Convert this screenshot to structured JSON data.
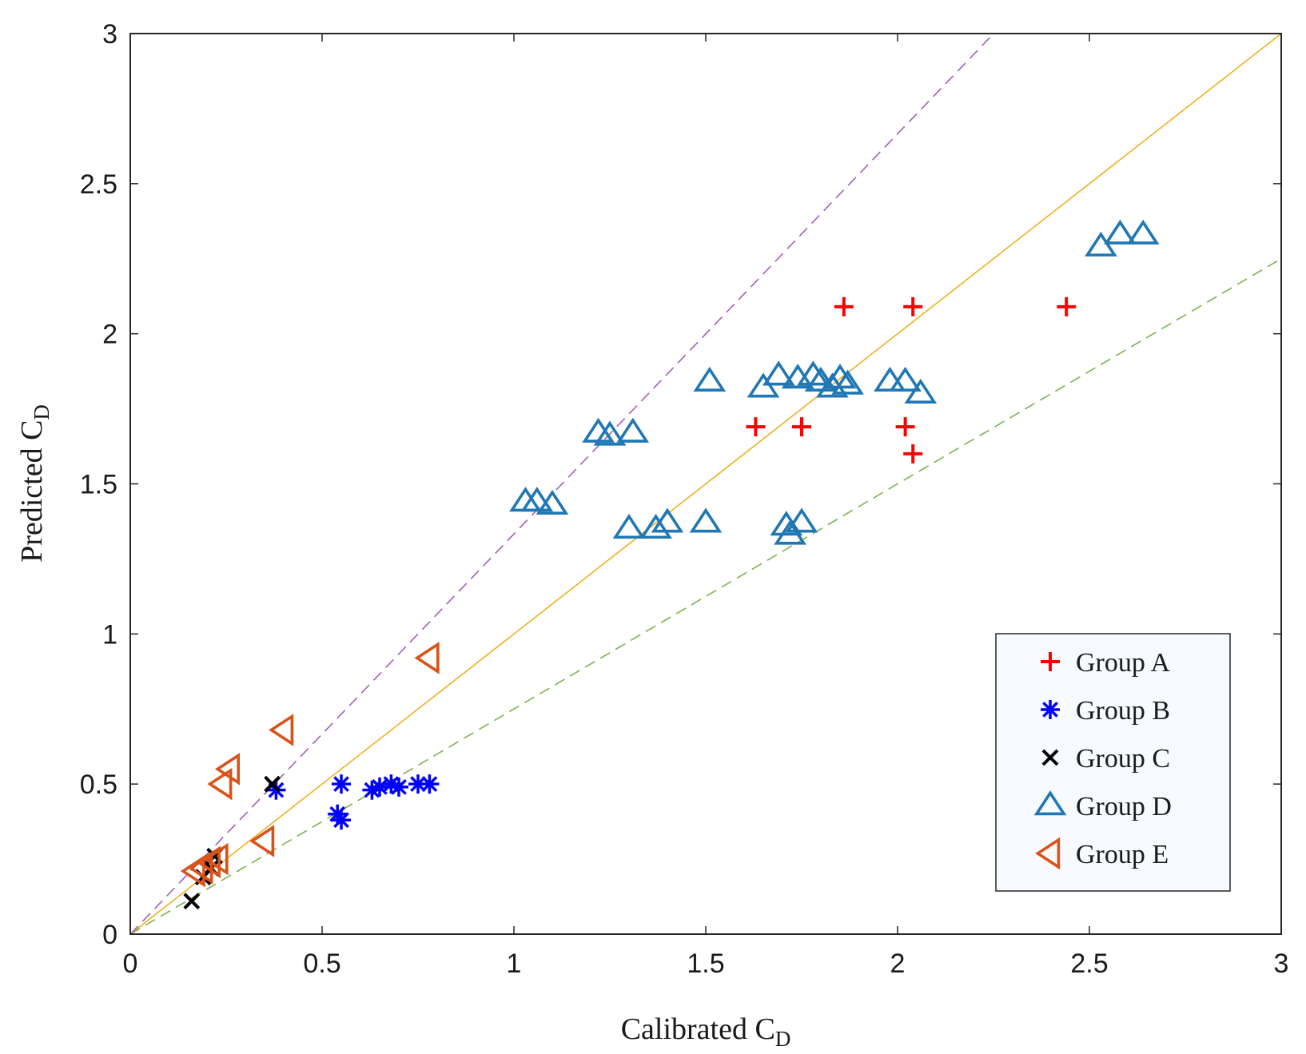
{
  "chart_data": {
    "type": "scatter",
    "title": "",
    "xlabel": {
      "main": "Calibrated C",
      "sub": "D"
    },
    "ylabel": {
      "main": "Predicted C",
      "sub": "D"
    },
    "xlim": [
      0,
      3
    ],
    "ylim": [
      0,
      3
    ],
    "xticks": [
      0,
      0.5,
      1,
      1.5,
      2,
      2.5,
      3
    ],
    "yticks": [
      0,
      0.5,
      1,
      1.5,
      2,
      2.5,
      3
    ],
    "xtick_labels": [
      "0",
      "0.5",
      "1",
      "1.5",
      "2",
      "2.5",
      "3"
    ],
    "ytick_labels": [
      "0",
      "0.5",
      "1",
      "1.5",
      "2",
      "2.5",
      "3"
    ],
    "grid": false,
    "legend_position": "bottom-right",
    "reference_lines": [
      {
        "name": "equality-line",
        "slope": 1.0,
        "color": "#f0b020",
        "style": "solid"
      },
      {
        "name": "upper-bound-line",
        "slope": 1.333,
        "color": "#a060b8",
        "style": "dashed"
      },
      {
        "name": "lower-bound-line",
        "slope": 0.75,
        "color": "#80b050",
        "style": "dashed"
      }
    ],
    "series": [
      {
        "name": "Group A",
        "marker": "plus",
        "color": "#ff0000",
        "points": [
          [
            1.86,
            2.09
          ],
          [
            2.04,
            2.09
          ],
          [
            2.44,
            2.09
          ],
          [
            1.63,
            1.69
          ],
          [
            1.75,
            1.69
          ],
          [
            2.02,
            1.69
          ],
          [
            2.04,
            1.6
          ]
        ]
      },
      {
        "name": "Group B",
        "marker": "asterisk",
        "color": "#0000ff",
        "points": [
          [
            0.38,
            0.48
          ],
          [
            0.55,
            0.5
          ],
          [
            0.54,
            0.4
          ],
          [
            0.55,
            0.38
          ],
          [
            0.63,
            0.48
          ],
          [
            0.65,
            0.49
          ],
          [
            0.68,
            0.5
          ],
          [
            0.7,
            0.49
          ],
          [
            0.75,
            0.5
          ],
          [
            0.78,
            0.5
          ]
        ]
      },
      {
        "name": "Group C",
        "marker": "cross",
        "color": "#000000",
        "points": [
          [
            0.16,
            0.11
          ],
          [
            0.19,
            0.19
          ],
          [
            0.21,
            0.22
          ],
          [
            0.22,
            0.26
          ],
          [
            0.37,
            0.5
          ]
        ]
      },
      {
        "name": "Group D",
        "marker": "triangle-up",
        "color": "#1f77b4",
        "points": [
          [
            1.03,
            1.44
          ],
          [
            1.06,
            1.44
          ],
          [
            1.1,
            1.43
          ],
          [
            1.22,
            1.67
          ],
          [
            1.25,
            1.66
          ],
          [
            1.31,
            1.67
          ],
          [
            1.3,
            1.35
          ],
          [
            1.37,
            1.35
          ],
          [
            1.4,
            1.37
          ],
          [
            1.5,
            1.37
          ],
          [
            1.51,
            1.84
          ],
          [
            1.65,
            1.82
          ],
          [
            1.69,
            1.86
          ],
          [
            1.71,
            1.36
          ],
          [
            1.72,
            1.33
          ],
          [
            1.75,
            1.37
          ],
          [
            1.74,
            1.85
          ],
          [
            1.78,
            1.86
          ],
          [
            1.8,
            1.84
          ],
          [
            1.83,
            1.82
          ],
          [
            1.85,
            1.85
          ],
          [
            1.87,
            1.83
          ],
          [
            1.98,
            1.84
          ],
          [
            2.02,
            1.84
          ],
          [
            2.06,
            1.8
          ],
          [
            2.53,
            2.29
          ],
          [
            2.58,
            2.33
          ],
          [
            2.64,
            2.33
          ]
        ]
      },
      {
        "name": "Group E",
        "marker": "triangle-left",
        "color": "#d95319",
        "points": [
          [
            0.17,
            0.21
          ],
          [
            0.19,
            0.22
          ],
          [
            0.21,
            0.24
          ],
          [
            0.23,
            0.25
          ],
          [
            0.24,
            0.5
          ],
          [
            0.26,
            0.55
          ],
          [
            0.35,
            0.31
          ],
          [
            0.4,
            0.68
          ],
          [
            0.78,
            0.92
          ]
        ]
      }
    ]
  }
}
